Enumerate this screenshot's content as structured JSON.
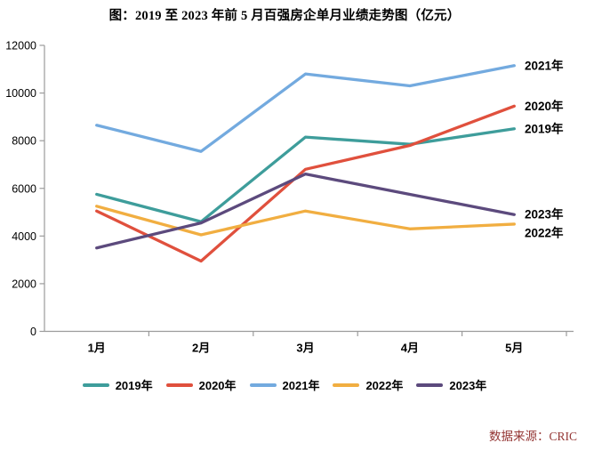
{
  "title": {
    "text": "图：2019 至 2023 年前 5 月百强房企单月业绩走势图（亿元）"
  },
  "source": {
    "text": "数据来源：CRIC",
    "color": "#943634"
  },
  "chart_data": {
    "type": "line",
    "title": "图：2019 至 2023 年前 5 月百强房企单月业绩走势图（亿元）",
    "unit": "亿元",
    "categories": [
      "1月",
      "2月",
      "3月",
      "4月",
      "5月"
    ],
    "series": [
      {
        "name": "2019年",
        "color": "#3E9D9B",
        "values": [
          5750,
          4600,
          8150,
          7850,
          8500
        ]
      },
      {
        "name": "2020年",
        "color": "#E0503D",
        "values": [
          5050,
          2950,
          6800,
          7800,
          9450
        ]
      },
      {
        "name": "2021年",
        "color": "#73AADF",
        "values": [
          8650,
          7550,
          10800,
          10300,
          11150
        ]
      },
      {
        "name": "2022年",
        "color": "#F1AE41",
        "values": [
          5250,
          4050,
          5050,
          4300,
          4500
        ]
      },
      {
        "name": "2023年",
        "color": "#5C4A7D",
        "values": [
          3500,
          4550,
          6600,
          5750,
          4900
        ]
      }
    ],
    "ylim": [
      0,
      12000
    ],
    "yticks": [
      0,
      2000,
      4000,
      6000,
      8000,
      10000,
      12000
    ],
    "xlabel": "",
    "ylabel": "",
    "grid": false,
    "legend_position": "bottom",
    "end_labels_shown": [
      "2021年",
      "2020年",
      "2019年",
      "2023年",
      "2022年"
    ],
    "axis_color": "#9B9B9B"
  }
}
